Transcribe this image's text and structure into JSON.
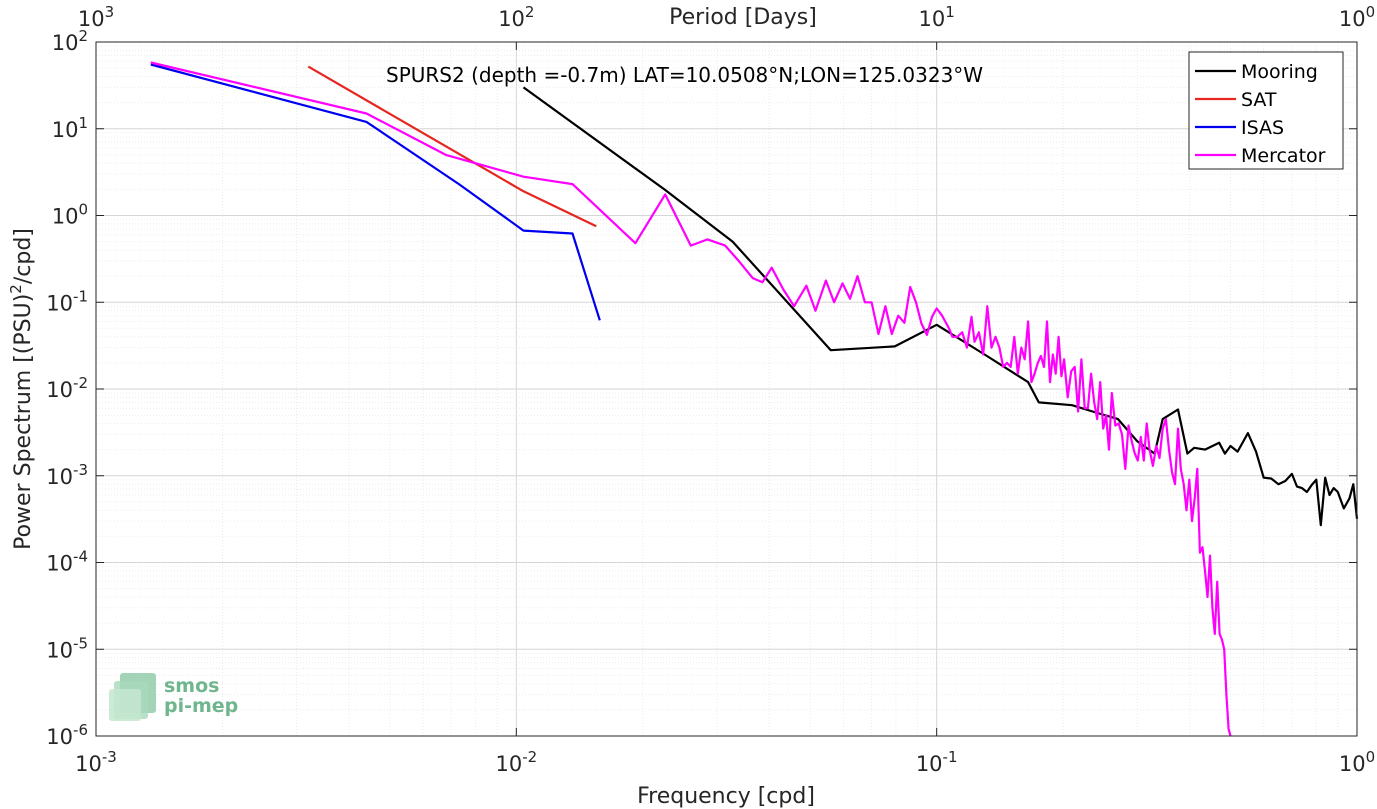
{
  "chart_data": {
    "type": "line",
    "title": "SPURS2 (depth =-0.7m) LAT=10.0508°N;LON=125.0323°W",
    "xlabel": "Frequency [cpd]",
    "ylabel": "Power Spectrum [(PSU)2/cpd]",
    "top_xlabel": "Period [Days]",
    "x_scale": "log",
    "y_scale": "log",
    "xlim": [
      0.001,
      1
    ],
    "ylim": [
      1e-06,
      100
    ],
    "grid": true,
    "legend_position": "top-right",
    "x_ticks": [
      {
        "base": "10",
        "exp": "-3"
      },
      {
        "base": "10",
        "exp": "-2"
      },
      {
        "base": "10",
        "exp": "-1"
      },
      {
        "base": "10",
        "exp": "0"
      }
    ],
    "top_ticks": [
      {
        "base": "10",
        "exp": "3"
      },
      {
        "base": "10",
        "exp": "2"
      },
      {
        "base": "10",
        "exp": "1"
      },
      {
        "base": "10",
        "exp": "0"
      }
    ],
    "y_ticks": [
      {
        "base": "10",
        "exp": "-6"
      },
      {
        "base": "10",
        "exp": "-5"
      },
      {
        "base": "10",
        "exp": "-4"
      },
      {
        "base": "10",
        "exp": "-3"
      },
      {
        "base": "10",
        "exp": "-2"
      },
      {
        "base": "10",
        "exp": "-1"
      },
      {
        "base": "10",
        "exp": "0"
      },
      {
        "base": "10",
        "exp": "1"
      },
      {
        "base": "10",
        "exp": "2"
      }
    ],
    "series": [
      {
        "name": "Mooring",
        "color": "#000000",
        "x": [
          0.0104,
          0.0225,
          0.0327,
          0.056,
          0.0795,
          0.1,
          0.13,
          0.165,
          0.175,
          0.21,
          0.235,
          0.27,
          0.3,
          0.33,
          0.345,
          0.375,
          0.395,
          0.41,
          0.435,
          0.47,
          0.485,
          0.5,
          0.52,
          0.55,
          0.575,
          0.6,
          0.625,
          0.65,
          0.675,
          0.7,
          0.72,
          0.74,
          0.76,
          0.78,
          0.8,
          0.82,
          0.84,
          0.86,
          0.88,
          0.9,
          0.93,
          0.96,
          0.98,
          1.0
        ],
        "y": [
          30,
          2.0,
          0.5,
          0.028,
          0.031,
          0.055,
          0.025,
          0.012,
          0.007,
          0.0065,
          0.0055,
          0.0045,
          0.0025,
          0.0018,
          0.0045,
          0.0058,
          0.0018,
          0.0021,
          0.002,
          0.0024,
          0.0018,
          0.0022,
          0.0019,
          0.0031,
          0.0019,
          0.00095,
          0.00093,
          0.0008,
          0.00087,
          0.00105,
          0.00075,
          0.00072,
          0.00065,
          0.00078,
          0.0009,
          0.00027,
          0.00095,
          0.0006,
          0.00072,
          0.00065,
          0.00042,
          0.00055,
          0.0008,
          0.00032
        ]
      },
      {
        "name": "SAT",
        "color": "#e6261f",
        "x": [
          0.0032,
          0.0104,
          0.0155
        ],
        "y": [
          52,
          1.9,
          0.75
        ]
      },
      {
        "name": "ISAS",
        "color": "#0000f0",
        "x": [
          0.00135,
          0.0044,
          0.0073,
          0.0104,
          0.0136,
          0.0158
        ],
        "y": [
          55,
          12,
          2.3,
          0.67,
          0.62,
          0.062
        ]
      },
      {
        "name": "Mercator",
        "color": "#ff00ff",
        "x": [
          0.00135,
          0.0044,
          0.0068,
          0.0104,
          0.0136,
          0.0192,
          0.0226,
          0.026,
          0.0285,
          0.0314,
          0.0338,
          0.0365,
          0.0385,
          0.0405,
          0.0432,
          0.0458,
          0.049,
          0.0515,
          0.0545,
          0.057,
          0.0597,
          0.0622,
          0.0648,
          0.0675,
          0.07,
          0.0727,
          0.0755,
          0.0782,
          0.081,
          0.0838,
          0.0865,
          0.0893,
          0.092,
          0.0948,
          0.0975,
          0.1,
          0.103,
          0.107,
          0.109,
          0.112,
          0.115,
          0.118,
          0.121,
          0.123,
          0.126,
          0.129,
          0.132,
          0.135,
          0.138,
          0.141,
          0.144,
          0.147,
          0.15,
          0.153,
          0.156,
          0.159,
          0.162,
          0.165,
          0.168,
          0.171,
          0.174,
          0.177,
          0.18,
          0.183,
          0.186,
          0.189,
          0.192,
          0.195,
          0.198,
          0.201,
          0.205,
          0.209,
          0.213,
          0.217,
          0.221,
          0.225,
          0.229,
          0.233,
          0.237,
          0.241,
          0.245,
          0.249,
          0.253,
          0.257,
          0.261,
          0.266,
          0.271,
          0.276,
          0.281,
          0.286,
          0.291,
          0.296,
          0.301,
          0.306,
          0.311,
          0.316,
          0.321,
          0.327,
          0.333,
          0.339,
          0.345,
          0.351,
          0.357,
          0.363,
          0.369,
          0.375,
          0.381,
          0.387,
          0.393,
          0.399,
          0.405,
          0.411,
          0.417,
          0.423,
          0.429,
          0.435,
          0.441,
          0.447,
          0.453,
          0.459,
          0.465,
          0.471,
          0.477,
          0.483,
          0.489,
          0.495,
          0.5
        ],
        "y": [
          58,
          15,
          5,
          2.8,
          2.3,
          0.48,
          1.75,
          0.45,
          0.53,
          0.45,
          0.3,
          0.19,
          0.17,
          0.25,
          0.14,
          0.09,
          0.155,
          0.08,
          0.178,
          0.1,
          0.165,
          0.11,
          0.2,
          0.1,
          0.1,
          0.043,
          0.09,
          0.043,
          0.07,
          0.058,
          0.15,
          0.1,
          0.057,
          0.042,
          0.068,
          0.085,
          0.07,
          0.05,
          0.04,
          0.04,
          0.045,
          0.03,
          0.068,
          0.035,
          0.045,
          0.025,
          0.09,
          0.03,
          0.04,
          0.03,
          0.018,
          0.02,
          0.018,
          0.04,
          0.015,
          0.03,
          0.022,
          0.06,
          0.012,
          0.015,
          0.02,
          0.024,
          0.018,
          0.06,
          0.012,
          0.025,
          0.015,
          0.04,
          0.014,
          0.022,
          0.008,
          0.016,
          0.018,
          0.0055,
          0.022,
          0.006,
          0.006,
          0.015,
          0.007,
          0.0045,
          0.012,
          0.0035,
          0.005,
          0.002,
          0.009,
          0.0038,
          0.004,
          0.003,
          0.0012,
          0.0038,
          0.0025,
          0.0018,
          0.0015,
          0.0028,
          0.0015,
          0.004,
          0.002,
          0.0013,
          0.0022,
          0.0016,
          0.0035,
          0.0045,
          0.002,
          0.0011,
          0.0008,
          0.0035,
          0.0012,
          0.0008,
          0.0004,
          0.0009,
          0.0003,
          0.00055,
          0.0012,
          0.00013,
          0.00015,
          8e-05,
          4e-05,
          0.00012,
          3e-05,
          1.5e-05,
          6e-05,
          1.5e-05,
          1.3e-05,
          1e-05,
          3e-06,
          1.2e-06,
          1e-06
        ]
      }
    ]
  }
}
